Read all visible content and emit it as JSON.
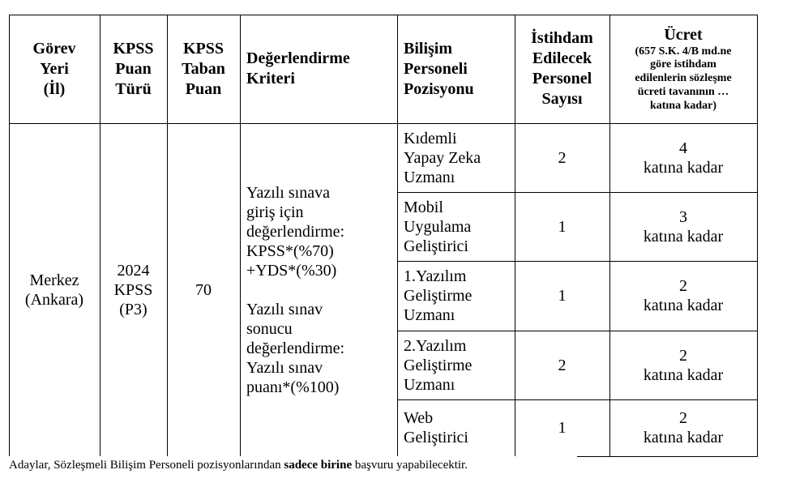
{
  "headers": {
    "gorev_yeri": [
      "Görev",
      "Yeri",
      "(İl)"
    ],
    "puan_turu": [
      "KPSS",
      "Puan",
      "Türü"
    ],
    "taban_puan": [
      "KPSS",
      "Taban",
      "Puan"
    ],
    "kriter": [
      "Değerlendirme",
      "Kriteri"
    ],
    "pozisyon": [
      "Bilişim",
      "Personeli",
      "Pozisyonu"
    ],
    "sayi": [
      "İstihdam",
      "Edilecek",
      "Personel",
      "Sayısı"
    ],
    "ucret_title": "Ücret",
    "ucret_sub": [
      "(657 S.K. 4/B md.ne",
      "göre istihdam",
      "edilenlerin sözleşme",
      "ücreti tavanının …",
      "katına kadar)"
    ]
  },
  "common": {
    "gorev_yeri": [
      "Merkez",
      "(Ankara)"
    ],
    "puan_turu": [
      "2024",
      "KPSS",
      "(P3)"
    ],
    "taban_puan": "70",
    "kriter": [
      "Yazılı sınava",
      "giriş için",
      "değerlendirme:",
      "KPSS*(%70)",
      "+YDS*(%30)",
      "",
      "Yazılı sınav",
      "sonucu",
      "değerlendirme:",
      "Yazılı sınav",
      "puanı*(%100)"
    ]
  },
  "rows": [
    {
      "pozisyon": [
        "Kıdemli",
        "Yapay Zeka",
        "Uzmanı"
      ],
      "sayi": "2",
      "ucret": "4",
      "ucret_suffix": "katına kadar"
    },
    {
      "pozisyon": [
        "Mobil",
        "Uygulama",
        "Geliştirici"
      ],
      "sayi": "1",
      "ucret": "3",
      "ucret_suffix": "katına kadar"
    },
    {
      "pozisyon": [
        "1.Yazılım",
        "Geliştirme",
        "Uzmanı"
      ],
      "sayi": "1",
      "ucret": "2",
      "ucret_suffix": "katına kadar"
    },
    {
      "pozisyon": [
        "2.Yazılım",
        "Geliştirme",
        "Uzmanı"
      ],
      "sayi": "2",
      "ucret": "2",
      "ucret_suffix": "katına kadar"
    },
    {
      "pozisyon": [
        "Web",
        "Geliştirici"
      ],
      "sayi": "1",
      "ucret": "2",
      "ucret_suffix": "katına kadar"
    }
  ],
  "footnote": {
    "before": "Adaylar, Sözleşmeli Bilişim Personeli pozisyonlarından ",
    "bold": "sadece birine",
    "after": " başvuru yapabilecektir."
  }
}
